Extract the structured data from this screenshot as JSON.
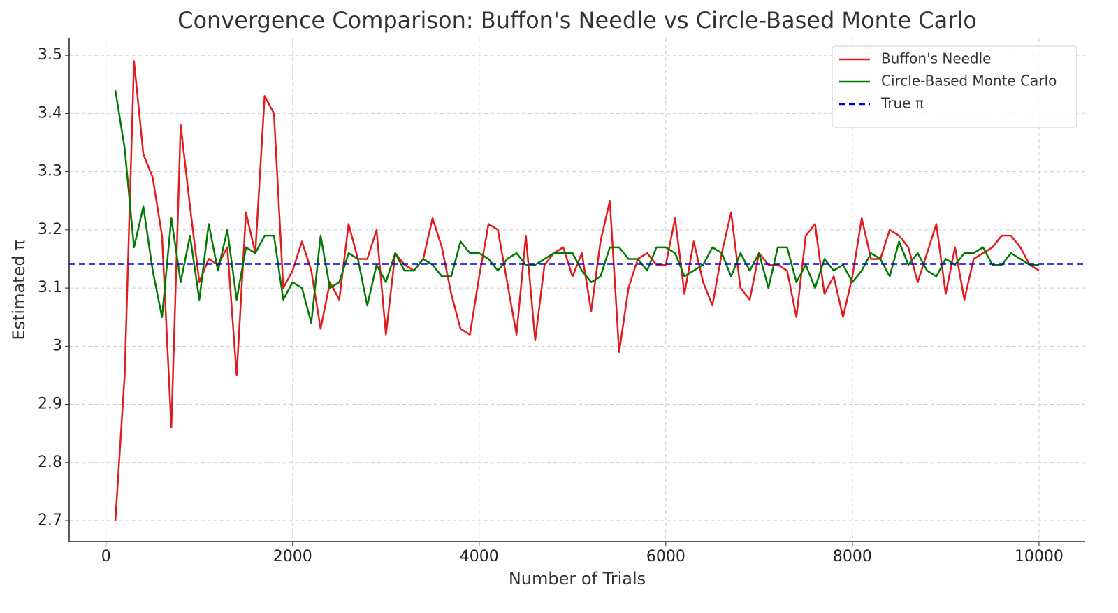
{
  "chart_data": {
    "type": "line",
    "title": "Convergence Comparison: Buffon's Needle vs Circle-Based Monte Carlo",
    "x_label": "Number of Trials",
    "y_label": "Estimated π",
    "x": [
      100,
      200,
      300,
      400,
      500,
      600,
      700,
      800,
      900,
      1000,
      1100,
      1200,
      1300,
      1400,
      1500,
      1600,
      1700,
      1800,
      1900,
      2000,
      2100,
      2200,
      2300,
      2400,
      2500,
      2600,
      2700,
      2800,
      2900,
      3000,
      3100,
      3200,
      3300,
      3400,
      3500,
      3600,
      3700,
      3800,
      3900,
      4000,
      4100,
      4200,
      4300,
      4400,
      4500,
      4600,
      4700,
      4800,
      4900,
      5000,
      5100,
      5200,
      5300,
      5400,
      5500,
      5600,
      5700,
      5800,
      5900,
      6000,
      6100,
      6200,
      6300,
      6400,
      6500,
      6600,
      6700,
      6800,
      6900,
      7000,
      7100,
      7200,
      7300,
      7400,
      7500,
      7600,
      7700,
      7800,
      7900,
      8000,
      8100,
      8200,
      8300,
      8400,
      8500,
      8600,
      8700,
      8800,
      8900,
      9000,
      9100,
      9200,
      9300,
      9400,
      9500,
      9600,
      9700,
      9800,
      9900,
      10000
    ],
    "series": [
      {
        "name": "Buffon's Needle",
        "color": "#e41a1c",
        "values": [
          2.7,
          2.95,
          3.49,
          3.33,
          3.29,
          3.19,
          2.86,
          3.38,
          3.24,
          3.11,
          3.15,
          3.14,
          3.17,
          2.95,
          3.23,
          3.16,
          3.43,
          3.4,
          3.1,
          3.13,
          3.18,
          3.13,
          3.03,
          3.11,
          3.08,
          3.21,
          3.15,
          3.15,
          3.2,
          3.02,
          3.16,
          3.14,
          3.13,
          3.15,
          3.22,
          3.17,
          3.09,
          3.03,
          3.02,
          3.12,
          3.21,
          3.2,
          3.11,
          3.02,
          3.19,
          3.01,
          3.14,
          3.16,
          3.17,
          3.12,
          3.16,
          3.06,
          3.18,
          3.25,
          2.99,
          3.1,
          3.15,
          3.16,
          3.14,
          3.14,
          3.22,
          3.09,
          3.18,
          3.11,
          3.07,
          3.16,
          3.23,
          3.1,
          3.08,
          3.16,
          3.14,
          3.14,
          3.13,
          3.05,
          3.19,
          3.21,
          3.09,
          3.12,
          3.05,
          3.12,
          3.22,
          3.15,
          3.15,
          3.2,
          3.19,
          3.17,
          3.11,
          3.16,
          3.21,
          3.09,
          3.17,
          3.08,
          3.15,
          3.16,
          3.17,
          3.19,
          3.19,
          3.17,
          3.14,
          3.13
        ]
      },
      {
        "name": "Circle-Based Monte Carlo",
        "color": "#007a00",
        "values": [
          3.44,
          3.34,
          3.17,
          3.24,
          3.13,
          3.05,
          3.22,
          3.11,
          3.19,
          3.08,
          3.21,
          3.13,
          3.2,
          3.08,
          3.17,
          3.16,
          3.19,
          3.19,
          3.08,
          3.11,
          3.1,
          3.04,
          3.19,
          3.1,
          3.11,
          3.16,
          3.15,
          3.07,
          3.14,
          3.11,
          3.16,
          3.13,
          3.13,
          3.15,
          3.14,
          3.12,
          3.12,
          3.18,
          3.16,
          3.16,
          3.15,
          3.13,
          3.15,
          3.16,
          3.14,
          3.14,
          3.15,
          3.16,
          3.16,
          3.16,
          3.13,
          3.11,
          3.12,
          3.17,
          3.17,
          3.15,
          3.15,
          3.13,
          3.17,
          3.17,
          3.16,
          3.12,
          3.13,
          3.14,
          3.17,
          3.16,
          3.12,
          3.16,
          3.13,
          3.16,
          3.1,
          3.17,
          3.17,
          3.11,
          3.14,
          3.1,
          3.15,
          3.13,
          3.14,
          3.11,
          3.13,
          3.16,
          3.15,
          3.12,
          3.18,
          3.14,
          3.16,
          3.13,
          3.12,
          3.15,
          3.14,
          3.16,
          3.16,
          3.17,
          3.14,
          3.14,
          3.16,
          3.15,
          3.14,
          3.14
        ]
      }
    ],
    "reference_lines": [
      {
        "name": "True π",
        "value": 3.141592653589793,
        "color": "#0000dd",
        "style": "dashed"
      }
    ],
    "xlim": [
      -395,
      10495
    ],
    "ylim": [
      2.664,
      3.529
    ],
    "xticks": [
      0,
      2000,
      4000,
      6000,
      8000,
      10000
    ],
    "yticks": [
      2.7,
      2.8,
      2.9,
      3.0,
      3.1,
      3.2,
      3.3,
      3.4,
      3.5
    ],
    "grid": true,
    "legend": "upper right"
  }
}
